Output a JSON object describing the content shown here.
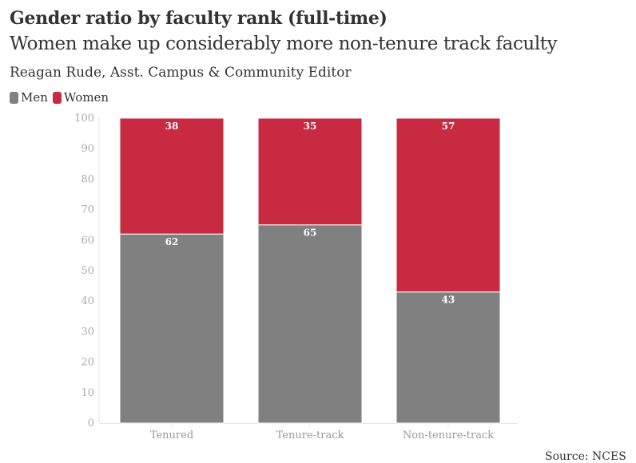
{
  "title": "Gender ratio by faculty rank (full-time)",
  "subtitle": "Women make up considerably more non-tenure track faculty",
  "byline": "Reagan Rude, Asst. Campus & Community Editor",
  "source": "Source: NCES",
  "colors": {
    "men": "#808080",
    "women": "#c82a41"
  },
  "chart_data": {
    "type": "bar",
    "stacked": true,
    "title": "Gender ratio by faculty rank (full-time)",
    "categories": [
      "Tenured",
      "Tenure-track",
      "Non-tenure-track"
    ],
    "series": [
      {
        "name": "Men",
        "values": [
          62,
          65,
          43
        ]
      },
      {
        "name": "Women",
        "values": [
          38,
          35,
          57
        ]
      }
    ],
    "ylim": [
      0,
      100
    ],
    "yticks": [
      0,
      10,
      20,
      30,
      40,
      50,
      60,
      70,
      80,
      90,
      100
    ],
    "legend": "top-left",
    "grid": false
  }
}
